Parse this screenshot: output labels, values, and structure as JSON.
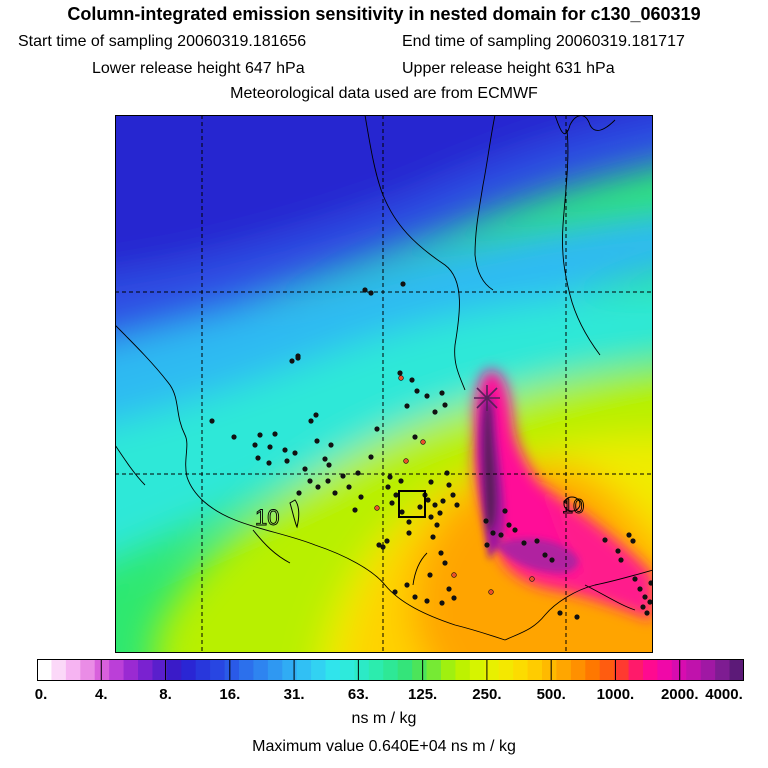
{
  "header": {
    "title": "Column-integrated emission sensitivity in nested domain for c130_060319",
    "start_time": "Start time of sampling 20060319.181656",
    "end_time": "End time of sampling 20060319.181717",
    "lower_release": "Lower release height  647 hPa",
    "upper_release": "Upper release height  631 hPa",
    "met_data": "Meteorological data used are from ECMWF"
  },
  "map": {
    "contour_labels": [
      "10",
      "10"
    ],
    "colors": {
      "deep_blue": "#2828d8",
      "blue": "#2e7cf0",
      "light_blue": "#33b8f5",
      "cyan": "#2ee8e0",
      "green": "#2ee870",
      "yellow_green": "#c8f000",
      "yellow": "#ffd400",
      "orange": "#ffa000",
      "magenta": "#ff1a8c",
      "dark_purple": "#5a1f5a"
    }
  },
  "legend": {
    "tick_labels": [
      "0.",
      "4.",
      "8.",
      "16.",
      "31.",
      "63.",
      "125.",
      "250.",
      "500.",
      "1000.",
      "2000.",
      "4000."
    ],
    "colors": [
      "#ffffff",
      "#fbd8f8",
      "#f6b4f2",
      "#ea8ce6",
      "#d860dc",
      "#bb3fd8",
      "#9a2ad2",
      "#7a22d0",
      "#5a1fcc",
      "#3a1bc8",
      "#2a26d4",
      "#2837dc",
      "#2846e2",
      "#2a5ae8",
      "#2c70ec",
      "#2e84f0",
      "#2f98f2",
      "#30acf4",
      "#31c0f4",
      "#32d2f2",
      "#30e4ec",
      "#2eeadc",
      "#2ceac6",
      "#2cecae",
      "#2ee896",
      "#34e47a",
      "#4ce45a",
      "#76ea34",
      "#a0f010",
      "#bef200",
      "#d6f400",
      "#e8f000",
      "#f4e800",
      "#fcdc00",
      "#ffcc00",
      "#ffba00",
      "#ffa600",
      "#ff9000",
      "#ff7800",
      "#ff5c10",
      "#ff3a30",
      "#ff1a6a",
      "#ff0a90",
      "#f008a8",
      "#d80cb0",
      "#c012ac",
      "#a018a4",
      "#7e1c92",
      "#5c1a78"
    ],
    "units": "ns m / kg",
    "max_value": "Maximum value  0.640E+04 ns m / kg"
  }
}
